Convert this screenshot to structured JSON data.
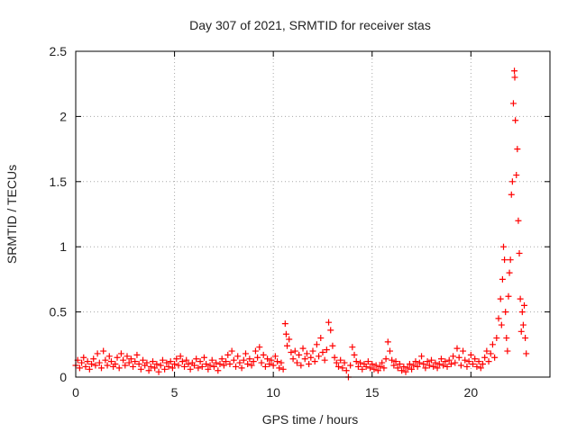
{
  "chart_data": {
    "type": "scatter",
    "title": "Day 307 of 2021, SRMTID for receiver stas",
    "xlabel": "GPS time / hours",
    "ylabel": "SRMTID / TECUs",
    "xlim": [
      0,
      24
    ],
    "ylim": [
      0,
      2.5
    ],
    "x_ticks": [
      0,
      5,
      10,
      15,
      20
    ],
    "x_tick_labels": [
      "0",
      "5",
      "10",
      "15",
      "20"
    ],
    "y_ticks": [
      0,
      0.5,
      1,
      1.5,
      2,
      2.5
    ],
    "y_tick_labels": [
      "0",
      "0.5",
      "1",
      "1.5",
      "2",
      "2.5"
    ],
    "grid": true,
    "marker": "plus",
    "series": [
      {
        "name": "SRMTID",
        "color": "#ff0000",
        "points": [
          [
            0.0,
            0.09
          ],
          [
            0.1,
            0.13
          ],
          [
            0.2,
            0.07
          ],
          [
            0.3,
            0.11
          ],
          [
            0.4,
            0.15
          ],
          [
            0.5,
            0.08
          ],
          [
            0.6,
            0.12
          ],
          [
            0.7,
            0.06
          ],
          [
            0.8,
            0.1
          ],
          [
            0.9,
            0.14
          ],
          [
            1.0,
            0.09
          ],
          [
            1.1,
            0.18
          ],
          [
            1.2,
            0.11
          ],
          [
            1.3,
            0.07
          ],
          [
            1.4,
            0.2
          ],
          [
            1.5,
            0.13
          ],
          [
            1.6,
            0.09
          ],
          [
            1.7,
            0.16
          ],
          [
            1.8,
            0.12
          ],
          [
            1.9,
            0.08
          ],
          [
            2.0,
            0.1
          ],
          [
            2.1,
            0.15
          ],
          [
            2.2,
            0.07
          ],
          [
            2.3,
            0.18
          ],
          [
            2.4,
            0.13
          ],
          [
            2.5,
            0.09
          ],
          [
            2.6,
            0.16
          ],
          [
            2.7,
            0.11
          ],
          [
            2.8,
            0.14
          ],
          [
            2.9,
            0.08
          ],
          [
            3.0,
            0.12
          ],
          [
            3.1,
            0.17
          ],
          [
            3.2,
            0.1
          ],
          [
            3.3,
            0.06
          ],
          [
            3.4,
            0.13
          ],
          [
            3.5,
            0.09
          ],
          [
            3.6,
            0.11
          ],
          [
            3.7,
            0.05
          ],
          [
            3.8,
            0.08
          ],
          [
            3.9,
            0.12
          ],
          [
            4.0,
            0.07
          ],
          [
            4.1,
            0.1
          ],
          [
            4.2,
            0.04
          ],
          [
            4.3,
            0.09
          ],
          [
            4.4,
            0.13
          ],
          [
            4.5,
            0.06
          ],
          [
            4.6,
            0.11
          ],
          [
            4.7,
            0.08
          ],
          [
            4.8,
            0.12
          ],
          [
            4.9,
            0.07
          ],
          [
            5.0,
            0.1
          ],
          [
            5.1,
            0.14
          ],
          [
            5.2,
            0.09
          ],
          [
            5.3,
            0.16
          ],
          [
            5.4,
            0.12
          ],
          [
            5.5,
            0.08
          ],
          [
            5.6,
            0.13
          ],
          [
            5.7,
            0.1
          ],
          [
            5.8,
            0.06
          ],
          [
            5.9,
            0.11
          ],
          [
            6.0,
            0.09
          ],
          [
            6.1,
            0.14
          ],
          [
            6.2,
            0.07
          ],
          [
            6.3,
            0.12
          ],
          [
            6.4,
            0.08
          ],
          [
            6.5,
            0.15
          ],
          [
            6.6,
            0.1
          ],
          [
            6.7,
            0.06
          ],
          [
            6.8,
            0.09
          ],
          [
            6.9,
            0.13
          ],
          [
            7.0,
            0.08
          ],
          [
            7.1,
            0.11
          ],
          [
            7.2,
            0.05
          ],
          [
            7.3,
            0.1
          ],
          [
            7.4,
            0.14
          ],
          [
            7.5,
            0.09
          ],
          [
            7.6,
            0.12
          ],
          [
            7.7,
            0.17
          ],
          [
            7.8,
            0.1
          ],
          [
            7.9,
            0.2
          ],
          [
            8.0,
            0.13
          ],
          [
            8.1,
            0.08
          ],
          [
            8.2,
            0.16
          ],
          [
            8.3,
            0.11
          ],
          [
            8.4,
            0.07
          ],
          [
            8.5,
            0.13
          ],
          [
            8.6,
            0.18
          ],
          [
            8.7,
            0.1
          ],
          [
            8.8,
            0.14
          ],
          [
            8.9,
            0.09
          ],
          [
            9.0,
            0.12
          ],
          [
            9.1,
            0.2
          ],
          [
            9.2,
            0.15
          ],
          [
            9.3,
            0.23
          ],
          [
            9.4,
            0.11
          ],
          [
            9.5,
            0.17
          ],
          [
            9.6,
            0.08
          ],
          [
            9.7,
            0.14
          ],
          [
            9.8,
            0.1
          ],
          [
            9.9,
            0.13
          ],
          [
            10.0,
            0.09
          ],
          [
            10.1,
            0.16
          ],
          [
            10.2,
            0.12
          ],
          [
            10.3,
            0.07
          ],
          [
            10.4,
            0.11
          ],
          [
            10.5,
            0.06
          ],
          [
            10.6,
            0.41
          ],
          [
            10.65,
            0.33
          ],
          [
            10.7,
            0.24
          ],
          [
            10.8,
            0.29
          ],
          [
            10.9,
            0.19
          ],
          [
            11.0,
            0.14
          ],
          [
            11.1,
            0.2
          ],
          [
            11.2,
            0.11
          ],
          [
            11.3,
            0.17
          ],
          [
            11.4,
            0.09
          ],
          [
            11.5,
            0.22
          ],
          [
            11.6,
            0.14
          ],
          [
            11.7,
            0.18
          ],
          [
            11.8,
            0.1
          ],
          [
            11.9,
            0.15
          ],
          [
            12.0,
            0.2
          ],
          [
            12.1,
            0.12
          ],
          [
            12.2,
            0.25
          ],
          [
            12.3,
            0.16
          ],
          [
            12.4,
            0.3
          ],
          [
            12.5,
            0.19
          ],
          [
            12.6,
            0.13
          ],
          [
            12.7,
            0.21
          ],
          [
            12.8,
            0.42
          ],
          [
            12.9,
            0.36
          ],
          [
            13.0,
            0.24
          ],
          [
            13.1,
            0.15
          ],
          [
            13.2,
            0.11
          ],
          [
            13.3,
            0.08
          ],
          [
            13.4,
            0.13
          ],
          [
            13.5,
            0.07
          ],
          [
            13.6,
            0.11
          ],
          [
            13.7,
            0.05
          ],
          [
            13.8,
            0.0
          ],
          [
            13.9,
            0.09
          ],
          [
            14.0,
            0.23
          ],
          [
            14.1,
            0.17
          ],
          [
            14.2,
            0.12
          ],
          [
            14.3,
            0.08
          ],
          [
            14.4,
            0.11
          ],
          [
            14.5,
            0.06
          ],
          [
            14.6,
            0.1
          ],
          [
            14.7,
            0.08
          ],
          [
            14.8,
            0.12
          ],
          [
            14.9,
            0.07
          ],
          [
            15.0,
            0.1
          ],
          [
            15.1,
            0.06
          ],
          [
            15.2,
            0.09
          ],
          [
            15.3,
            0.05
          ],
          [
            15.4,
            0.08
          ],
          [
            15.5,
            0.11
          ],
          [
            15.6,
            0.07
          ],
          [
            15.7,
            0.14
          ],
          [
            15.8,
            0.27
          ],
          [
            15.9,
            0.2
          ],
          [
            16.0,
            0.13
          ],
          [
            16.1,
            0.09
          ],
          [
            16.2,
            0.12
          ],
          [
            16.3,
            0.07
          ],
          [
            16.4,
            0.1
          ],
          [
            16.5,
            0.05
          ],
          [
            16.6,
            0.08
          ],
          [
            16.7,
            0.04
          ],
          [
            16.8,
            0.07
          ],
          [
            16.9,
            0.1
          ],
          [
            17.0,
            0.06
          ],
          [
            17.1,
            0.09
          ],
          [
            17.2,
            0.12
          ],
          [
            17.3,
            0.08
          ],
          [
            17.4,
            0.11
          ],
          [
            17.5,
            0.16
          ],
          [
            17.6,
            0.1
          ],
          [
            17.7,
            0.07
          ],
          [
            17.8,
            0.12
          ],
          [
            17.9,
            0.09
          ],
          [
            18.0,
            0.13
          ],
          [
            18.1,
            0.08
          ],
          [
            18.2,
            0.11
          ],
          [
            18.3,
            0.07
          ],
          [
            18.4,
            0.1
          ],
          [
            18.5,
            0.14
          ],
          [
            18.6,
            0.09
          ],
          [
            18.7,
            0.12
          ],
          [
            18.8,
            0.08
          ],
          [
            18.9,
            0.13
          ],
          [
            19.0,
            0.1
          ],
          [
            19.1,
            0.16
          ],
          [
            19.2,
            0.11
          ],
          [
            19.3,
            0.22
          ],
          [
            19.4,
            0.15
          ],
          [
            19.5,
            0.09
          ],
          [
            19.6,
            0.2
          ],
          [
            19.7,
            0.13
          ],
          [
            19.8,
            0.08
          ],
          [
            19.9,
            0.12
          ],
          [
            20.0,
            0.17
          ],
          [
            20.1,
            0.1
          ],
          [
            20.2,
            0.14
          ],
          [
            20.3,
            0.08
          ],
          [
            20.4,
            0.12
          ],
          [
            20.5,
            0.07
          ],
          [
            20.6,
            0.1
          ],
          [
            20.7,
            0.15
          ],
          [
            20.8,
            0.2
          ],
          [
            20.9,
            0.12
          ],
          [
            21.0,
            0.18
          ],
          [
            21.1,
            0.25
          ],
          [
            21.2,
            0.15
          ],
          [
            21.3,
            0.3
          ],
          [
            21.4,
            0.45
          ],
          [
            21.5,
            0.6
          ],
          [
            21.55,
            0.4
          ],
          [
            21.6,
            0.75
          ],
          [
            21.65,
            1.0
          ],
          [
            21.7,
            0.9
          ],
          [
            21.75,
            0.5
          ],
          [
            21.8,
            0.3
          ],
          [
            21.85,
            0.2
          ],
          [
            21.9,
            0.62
          ],
          [
            21.95,
            0.8
          ],
          [
            22.0,
            0.9
          ],
          [
            22.05,
            1.4
          ],
          [
            22.1,
            1.5
          ],
          [
            22.15,
            2.1
          ],
          [
            22.2,
            2.35
          ],
          [
            22.22,
            2.3
          ],
          [
            22.25,
            1.97
          ],
          [
            22.3,
            1.55
          ],
          [
            22.35,
            1.75
          ],
          [
            22.4,
            1.2
          ],
          [
            22.45,
            0.95
          ],
          [
            22.5,
            0.6
          ],
          [
            22.55,
            0.35
          ],
          [
            22.6,
            0.5
          ],
          [
            22.65,
            0.4
          ],
          [
            22.7,
            0.55
          ],
          [
            22.75,
            0.3
          ],
          [
            22.8,
            0.18
          ]
        ]
      }
    ]
  }
}
